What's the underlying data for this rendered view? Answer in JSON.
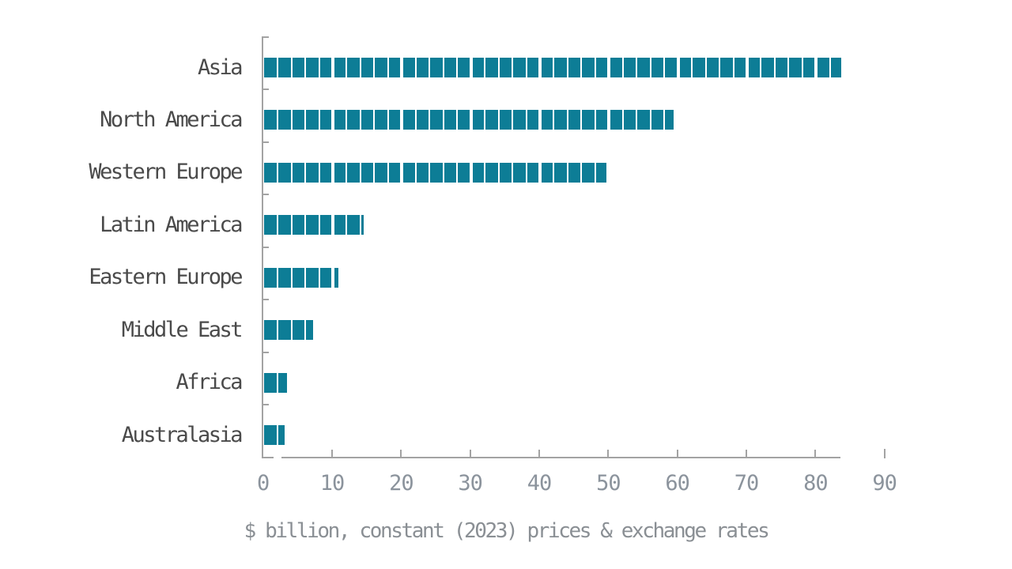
{
  "chart_data": {
    "type": "bar",
    "orientation": "horizontal",
    "title": "",
    "categories": [
      "Asia",
      "North America",
      "Western Europe",
      "Latin America",
      "Eastern Europe",
      "Middle East",
      "Africa",
      "Australasia"
    ],
    "values": [
      83.6,
      59.3,
      49.6,
      14.5,
      10.8,
      7.1,
      3.4,
      3.0
    ],
    "xlabel": "$ billion, constant (2023) prices & exchange rates",
    "ylabel": "",
    "xlim": [
      0,
      90
    ],
    "x_ticks": [
      0,
      10,
      20,
      30,
      40,
      50,
      60,
      70,
      80,
      90
    ],
    "grid": false,
    "legend": false,
    "bar_style": {
      "segment_units": 2,
      "decade_units": 10,
      "note": "bars are striped into 2-unit blocks with a wider white gap every 10 units"
    },
    "axis_style": {
      "x_axis_line_ends_at_max_value": true,
      "detached_tick_at": 90
    },
    "colors": {
      "bar": "#0D7D96",
      "axis": "#A3A3A3",
      "category_label": "#4A4A4A",
      "tick_label": "#8B939C",
      "caption": "#8A8F94",
      "background": "#FFFFFF"
    }
  }
}
